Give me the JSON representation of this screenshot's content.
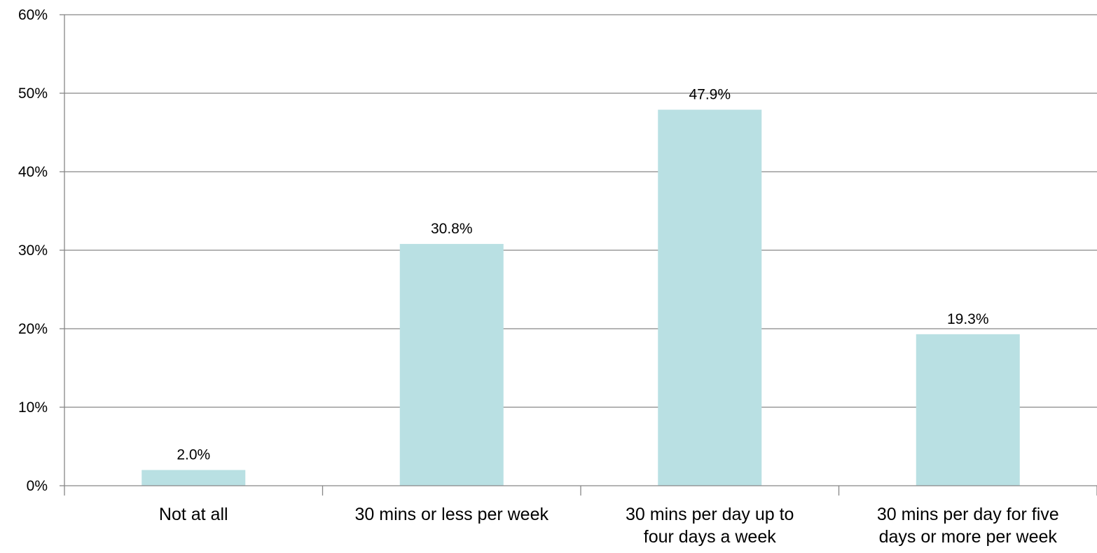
{
  "chart_data": {
    "type": "bar",
    "categories": [
      [
        "Not at all"
      ],
      [
        "30 mins or less per week"
      ],
      [
        "30 mins per day up to",
        "four days a week"
      ],
      [
        "30 mins per day for five",
        "days or more per week"
      ]
    ],
    "values": [
      2.0,
      30.8,
      47.9,
      19.3
    ],
    "data_labels": [
      "2.0%",
      "30.8%",
      "47.9%",
      "19.3%"
    ],
    "y_ticks": [
      "0%",
      "10%",
      "20%",
      "30%",
      "40%",
      "50%",
      "60%"
    ],
    "ylim": [
      0,
      60
    ],
    "y_unit": "%",
    "bar_color": "#b9e0e3",
    "grid": true,
    "legend": "none"
  }
}
